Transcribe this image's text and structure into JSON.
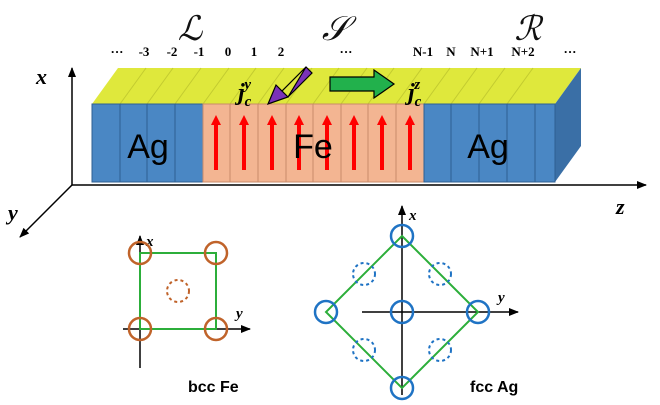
{
  "regions": {
    "left": "ℒ",
    "middle": "𝒮",
    "right": "ℛ"
  },
  "indices": {
    "left_ellipsis": "···",
    "left": [
      "-3",
      "-2",
      "-1"
    ],
    "center": [
      "0",
      "1",
      "2"
    ],
    "mid_ellipsis": "···",
    "right": [
      "N-1",
      "N",
      "N+1",
      "N+2"
    ],
    "right_ellipsis": "···"
  },
  "axes": {
    "x": "x",
    "y": "y",
    "z": "z"
  },
  "materials": {
    "left": "Ag",
    "middle": "Fe",
    "right": "Ag"
  },
  "currents": {
    "jy": {
      "base": "j",
      "sub": "c",
      "sup": "y"
    },
    "jz": {
      "base": "j",
      "sub": "c",
      "sup": "z"
    }
  },
  "bcc": {
    "caption": "bcc Fe",
    "x_label": "x",
    "y_label": "y"
  },
  "fcc": {
    "caption": "fcc Ag",
    "x_label": "x",
    "y_label": "y"
  },
  "colors": {
    "ag_blue": "#4a87c4",
    "ag_side": "#3a6fa6",
    "fe_orange": "#f3b592",
    "top_yellow": "#dfe83c",
    "spin_red": "#ff0000",
    "arrow_purple": "#7a32b8",
    "arrow_green": "#22b14c",
    "bcc_atom": "#c0632a",
    "fcc_atom": "#1f73c4",
    "lattice_green": "#2cae3a"
  }
}
